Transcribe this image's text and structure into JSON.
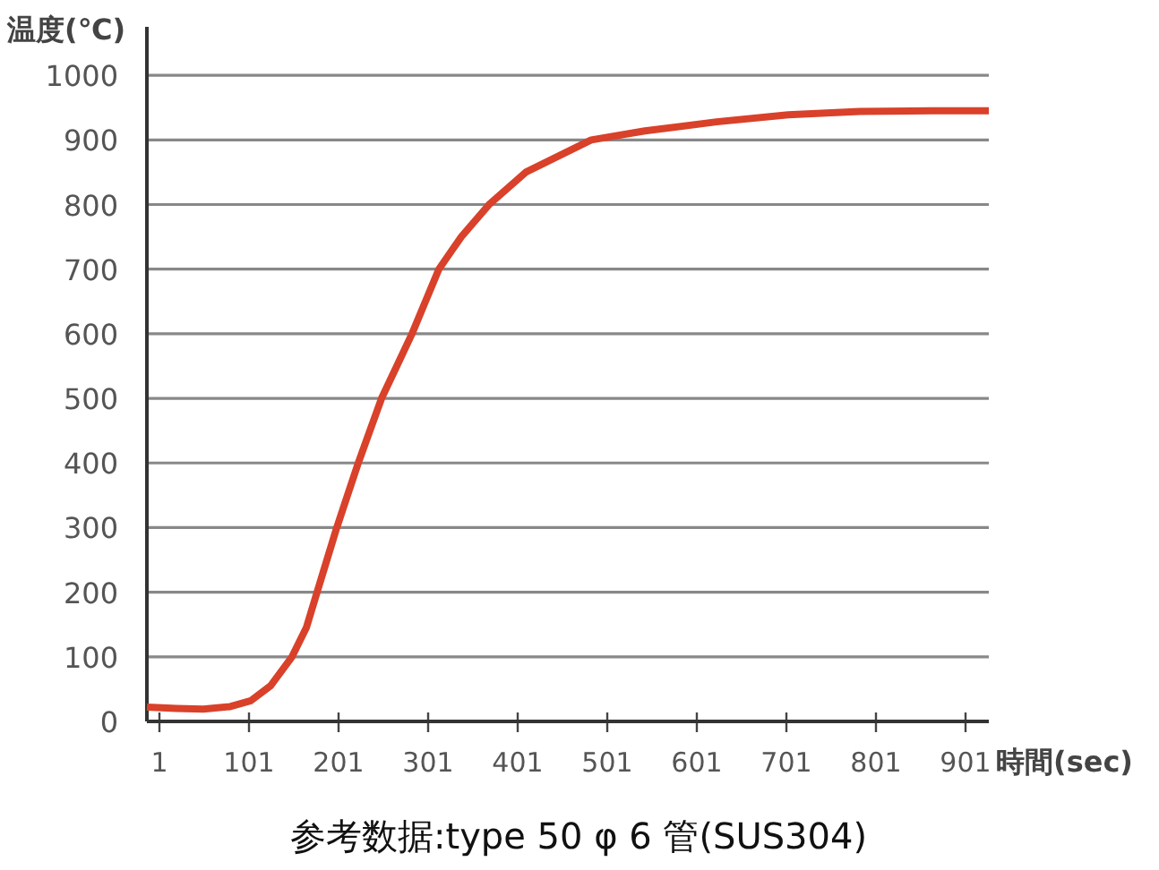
{
  "chart_data": {
    "type": "line",
    "xlabel": "時間(sec)",
    "ylabel": "温度(℃)",
    "annotations": [
      "参考数据:type 50 φ 6 管(SUS304)"
    ],
    "x": [
      -13,
      20,
      50,
      80,
      103,
      125,
      149,
      165,
      177,
      188,
      199,
      211,
      223,
      236,
      249,
      266,
      283,
      298,
      313,
      338,
      369,
      410,
      483,
      543,
      623,
      703,
      783,
      863,
      927
    ],
    "series": [
      {
        "color": "#d9412a",
        "values": [
          22,
          20,
          19,
          23,
          32,
          55,
          100,
          145,
          200,
          250,
          300,
          350,
          400,
          450,
          500,
          550,
          600,
          650,
          700,
          750,
          800,
          850,
          900,
          914,
          928,
          939,
          944,
          945,
          945
        ]
      }
    ],
    "xlim": [
      -13,
      927
    ],
    "ylim": [
      0,
      1075
    ],
    "xticks": [
      1,
      101,
      201,
      301,
      401,
      501,
      601,
      701,
      801,
      901
    ],
    "yticks": [
      0,
      100,
      200,
      300,
      400,
      500,
      600,
      700,
      800,
      900,
      1000
    ],
    "grid": "y"
  }
}
